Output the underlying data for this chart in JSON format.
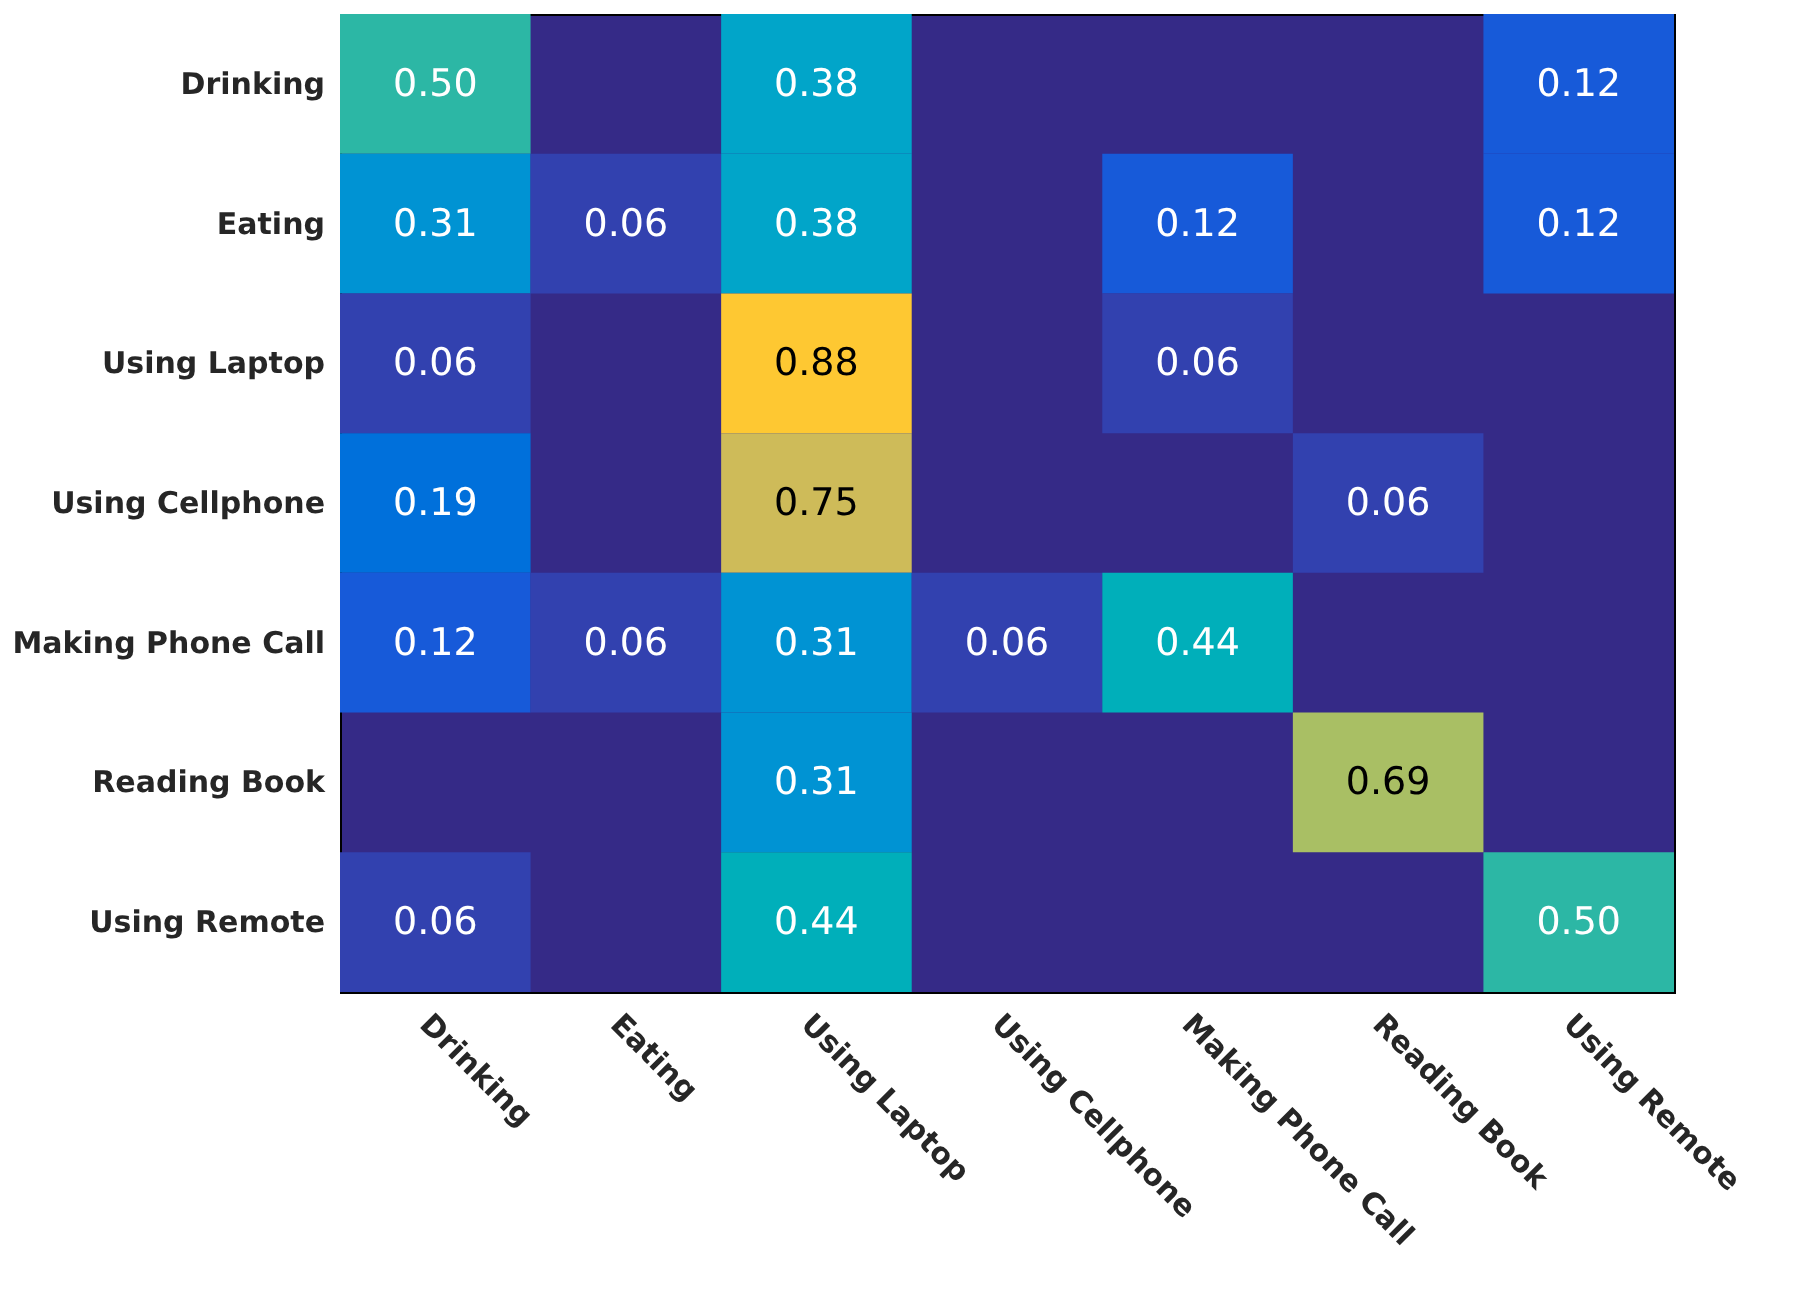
{
  "chart_data": {
    "type": "heatmap",
    "categories": [
      "Drinking",
      "Eating",
      "Using Laptop",
      "Using Cellphone",
      "Making Phone Call",
      "Reading Book",
      "Using Remote"
    ],
    "y_categories": [
      "Drinking",
      "Eating",
      "Using Laptop",
      "Using Cellphone",
      "Making Phone Call",
      "Reading Book",
      "Using Remote"
    ],
    "cells": [
      [
        0.5,
        null,
        0.38,
        null,
        null,
        null,
        0.12
      ],
      [
        0.31,
        0.06,
        0.38,
        null,
        0.12,
        null,
        0.12
      ],
      [
        0.06,
        null,
        0.88,
        null,
        0.06,
        null,
        null
      ],
      [
        0.19,
        null,
        0.75,
        null,
        null,
        0.06,
        null
      ],
      [
        0.12,
        0.06,
        0.31,
        0.06,
        0.44,
        null,
        null
      ],
      [
        null,
        null,
        0.31,
        null,
        null,
        0.69,
        null
      ],
      [
        0.06,
        null,
        0.44,
        null,
        null,
        null,
        0.5
      ]
    ],
    "cell_labels": [
      [
        "0.50",
        null,
        "0.38",
        null,
        null,
        null,
        "0.12"
      ],
      [
        "0.31",
        "0.06",
        "0.38",
        null,
        "0.12",
        null,
        "0.12"
      ],
      [
        "0.06",
        null,
        "0.88",
        null,
        "0.06",
        null,
        null
      ],
      [
        "0.19",
        null,
        "0.75",
        null,
        null,
        "0.06",
        null
      ],
      [
        "0.12",
        "0.06",
        "0.31",
        "0.06",
        "0.44",
        null,
        null
      ],
      [
        null,
        null,
        "0.31",
        null,
        null,
        "0.69",
        null
      ],
      [
        "0.06",
        null,
        "0.44",
        null,
        null,
        null,
        "0.50"
      ]
    ]
  }
}
